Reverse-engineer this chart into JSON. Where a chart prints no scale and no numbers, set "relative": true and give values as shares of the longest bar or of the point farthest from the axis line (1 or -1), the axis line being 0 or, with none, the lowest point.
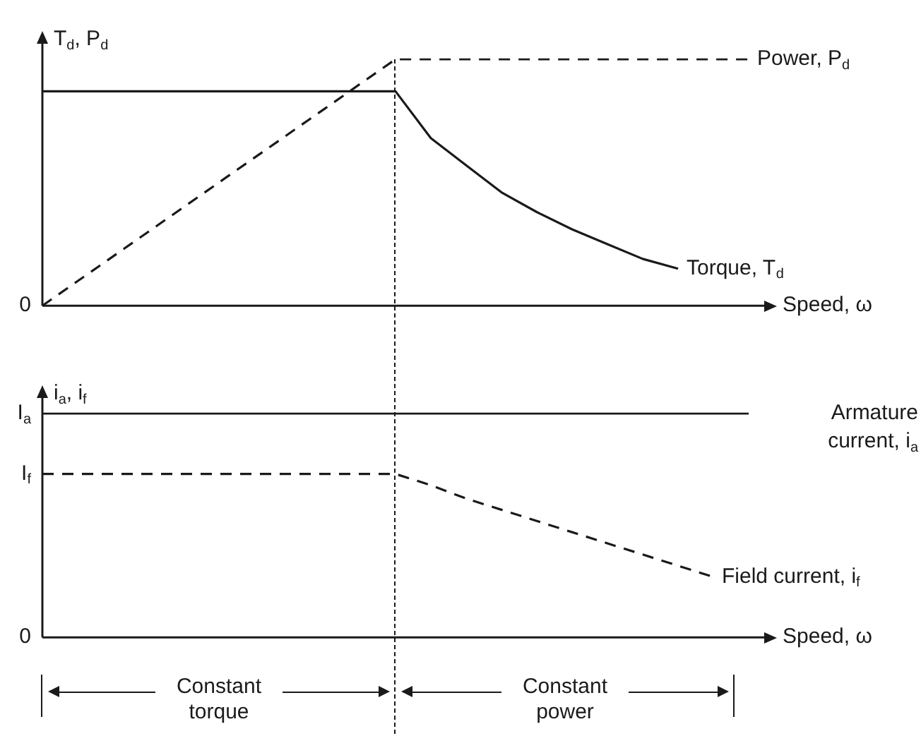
{
  "chart_data": [
    {
      "type": "line",
      "relative": true,
      "ylabel": "T$_{d}$, P$_{d}$",
      "xlabel": "Speed, ω",
      "marker": "none",
      "legend": false,
      "grid": false,
      "categories": [
        null,
        null,
        null,
        null,
        null,
        null,
        null,
        null,
        null,
        null,
        null,
        null,
        null,
        null,
        null,
        null,
        null,
        null,
        null,
        null,
        null
      ],
      "series": [
        {
          "name": "Power, P$_{d}$",
          "color": "#1a1a1a",
          "line_style": "dashed",
          "values": [
            0,
            0.1,
            0.2,
            0.3,
            0.4,
            0.5,
            0.6,
            0.7,
            0.8,
            0.9,
            1,
            1,
            1,
            1,
            1,
            1,
            1,
            1,
            1,
            1,
            1
          ]
        },
        {
          "name": "Torque, T$_{d}$",
          "color": "#1a1a1a",
          "line_style": "solid",
          "values": [
            0.87,
            0.87,
            0.87,
            0.87,
            0.87,
            0.87,
            0.87,
            0.87,
            0.87,
            0.87,
            0.87,
            0.68,
            0.57,
            0.46,
            0.38,
            0.31,
            0.25,
            0.19,
            0.15,
            null,
            null
          ]
        }
      ],
      "annotations": [
        "0"
      ]
    },
    {
      "type": "line",
      "relative": true,
      "ylabel": "i$_{a}$, i$_{f}$",
      "xlabel": "Speed, ω",
      "marker": "none",
      "legend": false,
      "grid": false,
      "categories": [
        null,
        null,
        null,
        null,
        null,
        null,
        null,
        null,
        null,
        null,
        null,
        null,
        null,
        null,
        null,
        null,
        null,
        null,
        null,
        null,
        null
      ],
      "series": [
        {
          "name": "Armature current, i$_{a}$",
          "color": "#1a1a1a",
          "line_style": "solid",
          "values": [
            1,
            1,
            1,
            1,
            1,
            1,
            1,
            1,
            1,
            1,
            1,
            1,
            1,
            1,
            1,
            1,
            1,
            1,
            1,
            1,
            1
          ]
        },
        {
          "name": "Field current, i$_{f}$",
          "color": "#1a1a1a",
          "line_style": "dashed",
          "values": [
            0.73,
            0.73,
            0.73,
            0.73,
            0.73,
            0.73,
            0.73,
            0.73,
            0.73,
            0.73,
            0.73,
            0.68,
            0.62,
            0.57,
            0.52,
            0.47,
            0.42,
            0.37,
            0.32,
            0.27,
            null
          ]
        }
      ],
      "annotations": [
        "I$_{a}$",
        "I$_{f}$",
        "0",
        "Constant torque",
        "Constant power"
      ]
    }
  ]
}
